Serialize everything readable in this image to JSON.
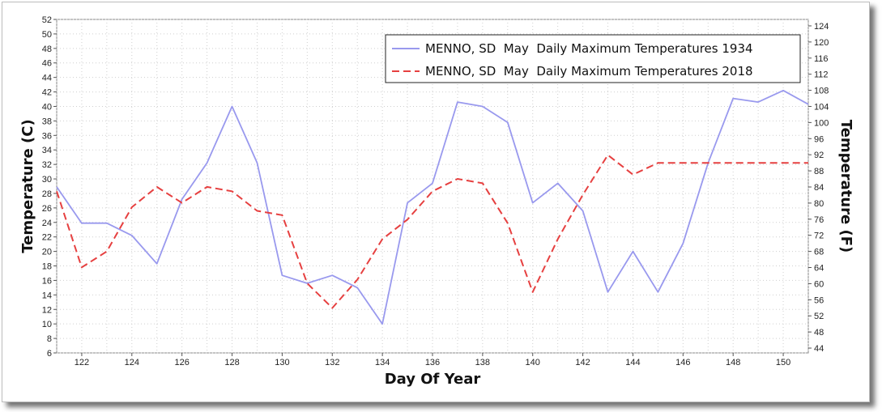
{
  "chart_data": {
    "type": "line",
    "xlabel": "Day Of Year",
    "ylabel": "Temperature (C)",
    "y2label": "Temperature (F)",
    "xlim": [
      121,
      151
    ],
    "ylim": [
      6,
      52
    ],
    "y2lim": [
      42.8,
      125.6
    ],
    "x_ticks": [
      122,
      124,
      126,
      128,
      130,
      132,
      134,
      136,
      138,
      140,
      142,
      144,
      146,
      148,
      150
    ],
    "y_ticks": [
      6,
      8,
      10,
      12,
      14,
      16,
      18,
      20,
      22,
      24,
      26,
      28,
      30,
      32,
      34,
      36,
      38,
      40,
      42,
      44,
      46,
      48,
      50,
      52
    ],
    "y2_ticks": [
      44,
      48,
      52,
      56,
      60,
      64,
      68,
      72,
      76,
      80,
      84,
      88,
      92,
      96,
      100,
      104,
      108,
      112,
      116,
      120,
      124
    ],
    "grid": true,
    "legend_position": "top-right",
    "x": [
      121,
      122,
      123,
      124,
      125,
      126,
      127,
      128,
      129,
      130,
      131,
      132,
      133,
      134,
      135,
      136,
      137,
      138,
      139,
      140,
      141,
      142,
      143,
      144,
      145,
      146,
      147,
      148,
      149,
      150,
      151
    ],
    "series": [
      {
        "name": "MENNO, SD  May  Daily Maximum Temperatures 1934",
        "color": "#9999ee",
        "style": "solid",
        "values": [
          28.9,
          23.9,
          23.9,
          22.2,
          18.3,
          27.2,
          32.2,
          40.0,
          32.2,
          16.7,
          15.6,
          16.7,
          15.0,
          10.0,
          26.7,
          29.4,
          40.6,
          40.0,
          37.8,
          26.7,
          29.4,
          25.6,
          14.4,
          20.0,
          14.4,
          21.1,
          32.2,
          41.1,
          40.6,
          42.2,
          40.3
        ]
      },
      {
        "name": "MENNO, SD  May  Daily Maximum Temperatures 2018",
        "color": "#e64040",
        "style": "dashed",
        "values": [
          28.3,
          17.8,
          20.0,
          26.1,
          28.9,
          26.7,
          28.9,
          28.3,
          25.6,
          25.0,
          15.6,
          12.2,
          16.1,
          21.7,
          24.4,
          28.3,
          30.0,
          29.4,
          23.9,
          14.4,
          21.7,
          27.8,
          33.3,
          30.6,
          32.2,
          32.2,
          32.2,
          32.2,
          32.2,
          32.2,
          32.2
        ]
      }
    ]
  }
}
